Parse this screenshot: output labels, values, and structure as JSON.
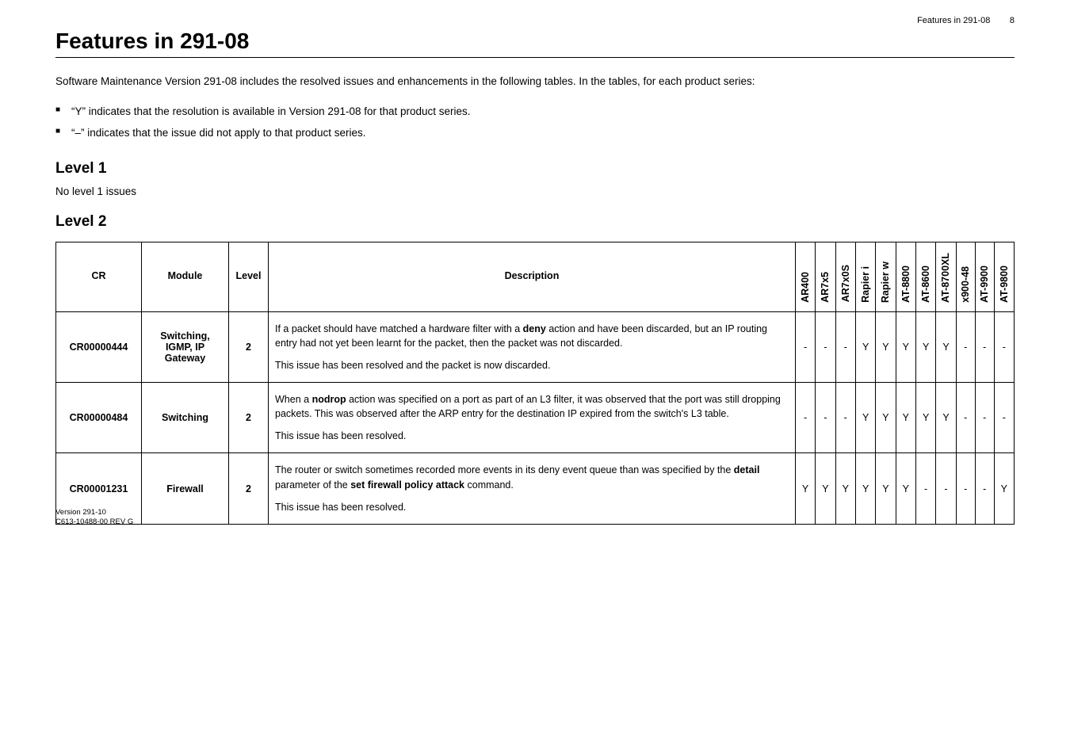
{
  "page_header": {
    "running_title": "Features in 291-08",
    "page_number": "8"
  },
  "title": "Features in 291-08",
  "intro": "Software Maintenance Version 291-08 includes the resolved issues and enhancements in the following tables. In the tables, for each product series:",
  "bullets": [
    "“Y” indicates that the resolution is available in Version 291-08 for that product series.",
    "“–” indicates that the issue did not apply to that product series."
  ],
  "sections": {
    "level1": {
      "heading": "Level 1",
      "text": "No level 1 issues"
    },
    "level2": {
      "heading": "Level 2"
    }
  },
  "table": {
    "columns": {
      "cr": "CR",
      "module": "Module",
      "level": "Level",
      "desc": "Description",
      "products": [
        "AR400",
        "AR7x5",
        "AR7x0S",
        "Rapier i",
        "Rapier w",
        "AT-8800",
        "AT-8600",
        "AT-8700XL",
        "x900-48",
        "AT-9900",
        "AT-9800"
      ]
    },
    "col_widths": {
      "cr": 108,
      "module": 110,
      "level": 50,
      "flag": 24
    },
    "rows": [
      {
        "cr": "CR00000444",
        "module": "Switching, IGMP, IP Gateway",
        "level": "2",
        "desc_p1_a": "If a packet should have matched a hardware filter with a ",
        "desc_p1_b": "deny",
        "desc_p1_c": " action and have been discarded, but an IP routing entry had not yet been learnt for the packet, then the packet was not discarded.",
        "desc_p2": "This issue has been resolved and the packet is now discarded.",
        "flags": [
          "-",
          "-",
          "-",
          "Y",
          "Y",
          "Y",
          "Y",
          "Y",
          "-",
          "-",
          "-"
        ]
      },
      {
        "cr": "CR00000484",
        "module": "Switching",
        "level": "2",
        "desc_p1_a": "When a ",
        "desc_p1_b": "nodrop",
        "desc_p1_c": " action was specified on a port as part of an L3 filter, it was observed that the port was still dropping packets. This was observed after the ARP entry for the destination IP expired from the switch's L3 table.",
        "desc_p2": "This issue has been resolved.",
        "flags": [
          "-",
          "-",
          "-",
          "Y",
          "Y",
          "Y",
          "Y",
          "Y",
          "-",
          "-",
          "-"
        ]
      },
      {
        "cr": "CR00001231",
        "module": "Firewall",
        "level": "2",
        "desc_p1_a": "The router or switch sometimes recorded more events in its deny event queue than was specified by the ",
        "desc_p1_b": "detail",
        "desc_p1_c": " parameter of the ",
        "desc_p1_d": "set firewall policy attack",
        "desc_p1_e": " command.",
        "desc_p2": "This issue has been resolved.",
        "flags": [
          "Y",
          "Y",
          "Y",
          "Y",
          "Y",
          "Y",
          "-",
          "-",
          "-",
          "-",
          "Y"
        ]
      }
    ]
  },
  "footer": {
    "line1": "Version 291-10",
    "line2": "C613-10488-00 REV G"
  }
}
